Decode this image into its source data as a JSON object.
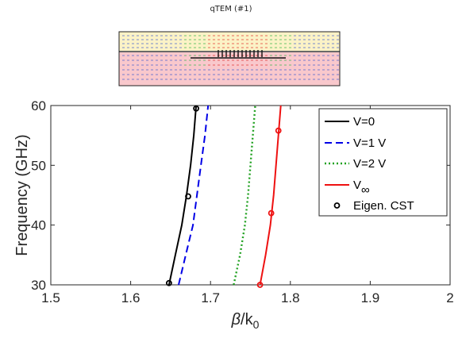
{
  "inset": {
    "title": "qTEM (#1)"
  },
  "chart_data": {
    "type": "line",
    "title": "",
    "xlabel": "β/k0",
    "ylabel": "Frequency (GHz)",
    "xlim": [
      1.5,
      2.0
    ],
    "ylim": [
      30,
      60
    ],
    "xticks": [
      "1.5",
      "1.6",
      "1.7",
      "1.8",
      "1.9",
      "2"
    ],
    "yticks": [
      "30",
      "40",
      "50",
      "60"
    ],
    "grid": false,
    "legend_position": "top-right",
    "series": [
      {
        "name": "V=0",
        "style": "solid",
        "color": "#000000",
        "x": [
          1.648,
          1.656,
          1.664,
          1.67,
          1.675,
          1.679,
          1.682
        ],
        "y": [
          30,
          35,
          40,
          45,
          50,
          55,
          60
        ]
      },
      {
        "name": "V=1 V",
        "style": "dashed",
        "color": "#0000e6",
        "x": [
          1.66,
          1.669,
          1.678,
          1.683,
          1.688,
          1.693,
          1.697
        ],
        "y": [
          30,
          35,
          40,
          45,
          50,
          55,
          60
        ]
      },
      {
        "name": "V=2 V",
        "style": "dotted",
        "color": "#21a121",
        "x": [
          1.729,
          1.737,
          1.743,
          1.747,
          1.75,
          1.753,
          1.756
        ],
        "y": [
          30,
          35,
          40,
          45,
          50,
          55,
          60
        ]
      },
      {
        "name": "V",
        "name_subscript": "∞",
        "style": "solid",
        "color": "#ee1111",
        "x": [
          1.762,
          1.769,
          1.775,
          1.779,
          1.782,
          1.785,
          1.788
        ],
        "y": [
          30,
          35,
          40,
          45,
          50,
          55,
          60
        ]
      }
    ],
    "markers": {
      "name": "Eigen. CST",
      "points": [
        {
          "x": 1.648,
          "y": 30.3,
          "color": "#000000"
        },
        {
          "x": 1.672,
          "y": 44.8,
          "color": "#000000"
        },
        {
          "x": 1.682,
          "y": 59.5,
          "color": "#000000"
        },
        {
          "x": 1.762,
          "y": 30.0,
          "color": "#ee1111"
        },
        {
          "x": 1.776,
          "y": 42.0,
          "color": "#ee1111"
        },
        {
          "x": 1.785,
          "y": 55.8,
          "color": "#ee1111"
        }
      ]
    }
  }
}
